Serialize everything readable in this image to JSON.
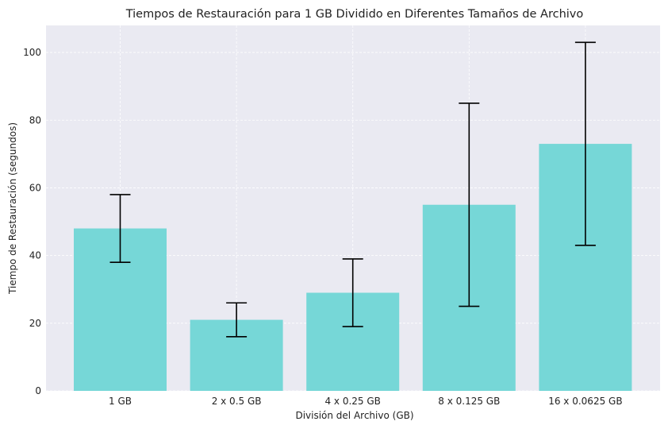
{
  "chart_data": {
    "type": "bar",
    "title": "Tiempos de Restauración para 1 GB Dividido en Diferentes Tamaños de Archivo",
    "xlabel": "División del Archivo (GB)",
    "ylabel": "Tiempo de Restauración (segundos)",
    "categories": [
      "1 GB",
      "2 x 0.5 GB",
      "4 x 0.25 GB",
      "8 x 0.125 GB",
      "16 x 0.0625 GB"
    ],
    "values": [
      48,
      21,
      29,
      55,
      73
    ],
    "error_low": [
      38,
      16,
      19,
      25,
      43
    ],
    "error_high": [
      58,
      26,
      39,
      85,
      103
    ],
    "ylim": [
      0,
      108
    ],
    "yticks": [
      0,
      20,
      40,
      60,
      80,
      100
    ],
    "grid": true,
    "colors": {
      "bar": "#76d7d7",
      "plot_bg": "#eaeaf2",
      "grid": "#ffffff",
      "error": "#000000"
    }
  }
}
